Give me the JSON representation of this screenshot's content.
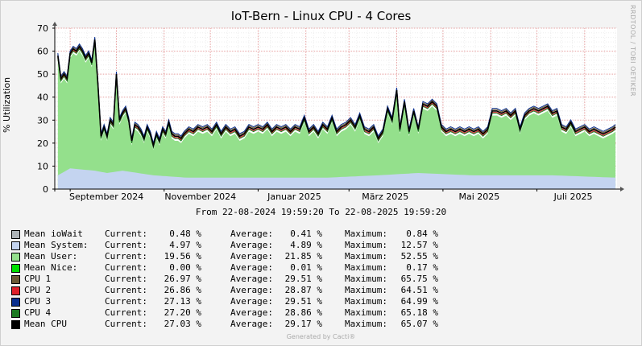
{
  "chart_data": {
    "type": "area",
    "title": "IoT-Bern - Linux CPU - 4 Cores",
    "ylabel": "% Utilization",
    "xlabel": "",
    "ylim": [
      0,
      70
    ],
    "yticks": [
      0,
      10,
      20,
      30,
      40,
      50,
      60,
      70
    ],
    "grid": true,
    "start_date": "2024-08-22",
    "end_date": "2025-08-22",
    "x_ticks": [
      {
        "label": "September 2024",
        "date": "2024-09-01"
      },
      {
        "label": "November 2024",
        "date": "2024-11-01"
      },
      {
        "label": "Januar 2025",
        "date": "2025-01-01"
      },
      {
        "label": "März 2025",
        "date": "2025-03-01"
      },
      {
        "label": "Mai 2025",
        "date": "2025-05-01"
      },
      {
        "label": "Juli 2025",
        "date": "2025-07-01"
      }
    ],
    "range_text": "From 22-08-2024 19:59:20 To 22-08-2025 19:59:20",
    "watermark": "RRDTOOL / TOBI OETIKER",
    "footer": "Generated by Cacti®",
    "legend_labels": {
      "current": "Current:",
      "average": "Average:",
      "maximum": "Maximum:"
    },
    "series": [
      {
        "name": "Mean ioWait",
        "color": "#aeb4b8",
        "current": "0.48 %",
        "average": "0.41 %",
        "maximum": "0.84 %"
      },
      {
        "name": "Mean System:",
        "color": "#c4d4f0",
        "current": "4.97 %",
        "average": "4.89 %",
        "maximum": "12.57 %"
      },
      {
        "name": "Mean User:",
        "color": "#94e08c",
        "current": "19.56 %",
        "average": "21.85 %",
        "maximum": "52.55 %"
      },
      {
        "name": "Mean Nice:",
        "color": "#00e000",
        "current": "0.00 %",
        "average": "0.01 %",
        "maximum": "0.17 %"
      },
      {
        "name": "CPU 1",
        "color": "#6b5a36",
        "current": "26.97 %",
        "average": "29.51 %",
        "maximum": "65.75 %"
      },
      {
        "name": "CPU 2",
        "color": "#e0202a",
        "current": "26.86 %",
        "average": "28.87 %",
        "maximum": "64.51 %"
      },
      {
        "name": "CPU 3",
        "color": "#0a2f8f",
        "current": "27.13 %",
        "average": "29.51 %",
        "maximum": "64.99 %"
      },
      {
        "name": "CPU 4",
        "color": "#1c7a22",
        "current": "27.20 %",
        "average": "28.86 %",
        "maximum": "65.18 %"
      },
      {
        "name": "Mean CPU",
        "color": "#000000",
        "current": "27.03 %",
        "average": "29.17 %",
        "maximum": "65.07 %"
      }
    ],
    "mean_cpu_points": [
      [
        "2024-08-24",
        58
      ],
      [
        "2024-08-26",
        48
      ],
      [
        "2024-08-28",
        50
      ],
      [
        "2024-08-30",
        48
      ],
      [
        "2024-09-01",
        59
      ],
      [
        "2024-09-03",
        61
      ],
      [
        "2024-09-05",
        60
      ],
      [
        "2024-09-07",
        62
      ],
      [
        "2024-09-09",
        60
      ],
      [
        "2024-09-11",
        57
      ],
      [
        "2024-09-13",
        59
      ],
      [
        "2024-09-15",
        55
      ],
      [
        "2024-09-17",
        65
      ],
      [
        "2024-09-19",
        46
      ],
      [
        "2024-09-21",
        23
      ],
      [
        "2024-09-23",
        27
      ],
      [
        "2024-09-25",
        23
      ],
      [
        "2024-09-27",
        30
      ],
      [
        "2024-09-29",
        28
      ],
      [
        "2024-10-01",
        50
      ],
      [
        "2024-10-03",
        30
      ],
      [
        "2024-10-05",
        33
      ],
      [
        "2024-10-07",
        35
      ],
      [
        "2024-10-09",
        30
      ],
      [
        "2024-10-11",
        21
      ],
      [
        "2024-10-13",
        28
      ],
      [
        "2024-10-15",
        27
      ],
      [
        "2024-10-17",
        25
      ],
      [
        "2024-10-19",
        22
      ],
      [
        "2024-10-21",
        27
      ],
      [
        "2024-10-23",
        24
      ],
      [
        "2024-10-25",
        19
      ],
      [
        "2024-10-27",
        24
      ],
      [
        "2024-10-29",
        21
      ],
      [
        "2024-10-31",
        26
      ],
      [
        "2024-11-02",
        24
      ],
      [
        "2024-11-04",
        29
      ],
      [
        "2024-11-06",
        24
      ],
      [
        "2024-11-08",
        23
      ],
      [
        "2024-11-10",
        23
      ],
      [
        "2024-11-12",
        22
      ],
      [
        "2024-11-14",
        24
      ],
      [
        "2024-11-17",
        26
      ],
      [
        "2024-11-20",
        25
      ],
      [
        "2024-11-23",
        27
      ],
      [
        "2024-11-26",
        26
      ],
      [
        "2024-11-29",
        27
      ],
      [
        "2024-12-02",
        25
      ],
      [
        "2024-12-05",
        28
      ],
      [
        "2024-12-08",
        24
      ],
      [
        "2024-12-11",
        27
      ],
      [
        "2024-12-14",
        25
      ],
      [
        "2024-12-17",
        26
      ],
      [
        "2024-12-20",
        23
      ],
      [
        "2024-12-23",
        24
      ],
      [
        "2024-12-26",
        27
      ],
      [
        "2024-12-29",
        26
      ],
      [
        "2025-01-01",
        27
      ],
      [
        "2025-01-04",
        26
      ],
      [
        "2025-01-07",
        28
      ],
      [
        "2025-01-10",
        25
      ],
      [
        "2025-01-13",
        27
      ],
      [
        "2025-01-16",
        26
      ],
      [
        "2025-01-19",
        27
      ],
      [
        "2025-01-22",
        25
      ],
      [
        "2025-01-25",
        27
      ],
      [
        "2025-01-28",
        26
      ],
      [
        "2025-01-31",
        31
      ],
      [
        "2025-02-03",
        25
      ],
      [
        "2025-02-06",
        27
      ],
      [
        "2025-02-09",
        24
      ],
      [
        "2025-02-12",
        28
      ],
      [
        "2025-02-15",
        26
      ],
      [
        "2025-02-18",
        31
      ],
      [
        "2025-02-21",
        25
      ],
      [
        "2025-02-24",
        27
      ],
      [
        "2025-02-27",
        28
      ],
      [
        "2025-03-02",
        30
      ],
      [
        "2025-03-05",
        27
      ],
      [
        "2025-03-08",
        32
      ],
      [
        "2025-03-11",
        26
      ],
      [
        "2025-03-14",
        25
      ],
      [
        "2025-03-17",
        27
      ],
      [
        "2025-03-20",
        22
      ],
      [
        "2025-03-23",
        25
      ],
      [
        "2025-03-26",
        35
      ],
      [
        "2025-03-29",
        30
      ],
      [
        "2025-04-01",
        43
      ],
      [
        "2025-04-03",
        26
      ],
      [
        "2025-04-06",
        38
      ],
      [
        "2025-04-09",
        25
      ],
      [
        "2025-04-12",
        34
      ],
      [
        "2025-04-15",
        26
      ],
      [
        "2025-04-18",
        37
      ],
      [
        "2025-04-21",
        36
      ],
      [
        "2025-04-24",
        38
      ],
      [
        "2025-04-27",
        36
      ],
      [
        "2025-04-30",
        27
      ],
      [
        "2025-05-03",
        25
      ],
      [
        "2025-05-06",
        26
      ],
      [
        "2025-05-09",
        25
      ],
      [
        "2025-05-12",
        26
      ],
      [
        "2025-05-15",
        25
      ],
      [
        "2025-05-18",
        26
      ],
      [
        "2025-05-21",
        25
      ],
      [
        "2025-05-24",
        26
      ],
      [
        "2025-05-27",
        24
      ],
      [
        "2025-05-30",
        26
      ],
      [
        "2025-06-02",
        34
      ],
      [
        "2025-06-05",
        34
      ],
      [
        "2025-06-08",
        33
      ],
      [
        "2025-06-11",
        34
      ],
      [
        "2025-06-14",
        32
      ],
      [
        "2025-06-17",
        34
      ],
      [
        "2025-06-20",
        26
      ],
      [
        "2025-06-23",
        32
      ],
      [
        "2025-06-26",
        34
      ],
      [
        "2025-06-29",
        35
      ],
      [
        "2025-07-02",
        34
      ],
      [
        "2025-07-05",
        35
      ],
      [
        "2025-07-08",
        36
      ],
      [
        "2025-07-11",
        33
      ],
      [
        "2025-07-14",
        34
      ],
      [
        "2025-07-17",
        27
      ],
      [
        "2025-07-20",
        26
      ],
      [
        "2025-07-23",
        29
      ],
      [
        "2025-07-26",
        25
      ],
      [
        "2025-07-29",
        26
      ],
      [
        "2025-08-01",
        27
      ],
      [
        "2025-08-04",
        25
      ],
      [
        "2025-08-07",
        26
      ],
      [
        "2025-08-10",
        25
      ],
      [
        "2025-08-13",
        24
      ],
      [
        "2025-08-16",
        25
      ],
      [
        "2025-08-19",
        26
      ],
      [
        "2025-08-21",
        27
      ]
    ],
    "mean_system_points": [
      [
        "2024-08-24",
        6
      ],
      [
        "2024-09-01",
        9
      ],
      [
        "2024-09-17",
        8
      ],
      [
        "2024-09-25",
        7
      ],
      [
        "2024-10-05",
        8
      ],
      [
        "2024-10-25",
        6
      ],
      [
        "2024-11-15",
        5
      ],
      [
        "2025-01-01",
        5
      ],
      [
        "2025-02-15",
        5
      ],
      [
        "2025-03-20",
        6
      ],
      [
        "2025-04-15",
        7
      ],
      [
        "2025-05-20",
        6
      ],
      [
        "2025-06-15",
        6
      ],
      [
        "2025-07-10",
        6
      ],
      [
        "2025-08-21",
        5
      ]
    ]
  }
}
